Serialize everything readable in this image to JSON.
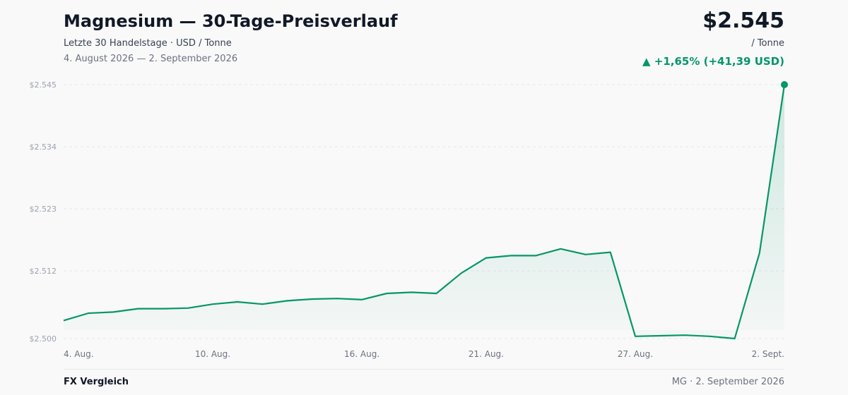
{
  "header": {
    "title": "Magnesium — 30-Tage-Preisverlauf",
    "subtitle": "Letzte 30 Handelstage · USD / Tonne",
    "date_range": "4. August 2026 — 2. September 2026",
    "price": "$2.545",
    "unit": "/ Tonne",
    "change_arrow": "▲",
    "change": "+1,65% (+41,39 USD)"
  },
  "footer": {
    "brand": "FX Vergleich",
    "right": "MG · 2. September 2026"
  },
  "colors": {
    "line": "#059669",
    "change": "#059669",
    "grid": "#e5e7eb"
  },
  "chart_data": {
    "type": "area",
    "ylim": [
      2500,
      2545
    ],
    "y_ticks": [
      {
        "value": 2545,
        "label": "$2.545"
      },
      {
        "value": 2534,
        "label": "$2.534"
      },
      {
        "value": 2523,
        "label": "$2.523"
      },
      {
        "value": 2512,
        "label": "$2.512"
      },
      {
        "value": 2500,
        "label": "$2.500"
      }
    ],
    "x_ticks": [
      {
        "index": 0,
        "label": "4. Aug."
      },
      {
        "index": 6,
        "label": "10. Aug."
      },
      {
        "index": 12,
        "label": "16. Aug."
      },
      {
        "index": 17,
        "label": "21. Aug."
      },
      {
        "index": 23,
        "label": "27. Aug."
      },
      {
        "index": 29,
        "label": "2. Sept."
      }
    ],
    "grid": true,
    "values": [
      2503.2,
      2504.5,
      2504.7,
      2505.3,
      2505.3,
      2505.4,
      2506.1,
      2506.5,
      2506.1,
      2506.7,
      2507.0,
      2507.1,
      2506.9,
      2508.0,
      2508.2,
      2508.0,
      2511.6,
      2514.3,
      2514.7,
      2514.7,
      2515.9,
      2514.9,
      2515.3,
      2500.4,
      2500.5,
      2500.6,
      2500.4,
      2500.0,
      2515.2,
      2545.0
    ]
  }
}
